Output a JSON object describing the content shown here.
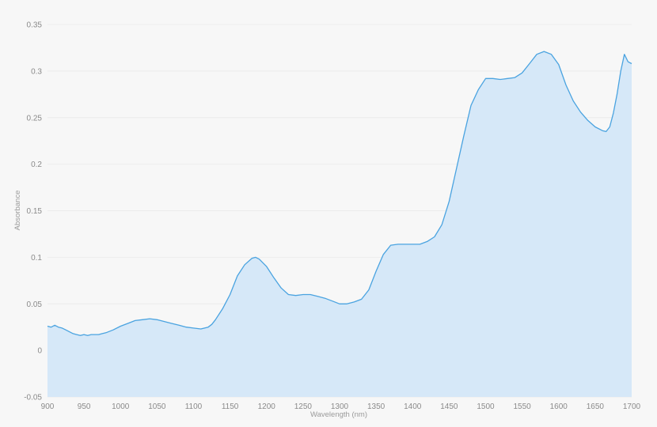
{
  "chart_data": {
    "type": "area",
    "xlabel": "Wavelength (nm)",
    "ylabel": "Absorbance",
    "xlim": [
      900,
      1700
    ],
    "ylim": [
      -0.05,
      0.35
    ],
    "grid": true,
    "x_ticks": [
      900,
      950,
      1000,
      1050,
      1100,
      1150,
      1200,
      1250,
      1300,
      1350,
      1400,
      1450,
      1500,
      1550,
      1600,
      1650,
      1700
    ],
    "y_ticks": [
      "-0.05",
      "0",
      "0.05",
      "0.1",
      "0.15",
      "0.2",
      "0.25",
      "0.3",
      "0.35"
    ],
    "colors": {
      "line": "#4aa3e0",
      "fill": "#d6e8f8",
      "grid": "#ececec"
    },
    "series": [
      {
        "x": [
          900,
          905,
          910,
          915,
          920,
          925,
          930,
          935,
          940,
          945,
          950,
          955,
          960,
          965,
          970,
          975,
          980,
          990,
          1000,
          1010,
          1020,
          1030,
          1040,
          1050,
          1060,
          1070,
          1080,
          1090,
          1100,
          1110,
          1120,
          1125,
          1130,
          1140,
          1150,
          1160,
          1170,
          1180,
          1185,
          1190,
          1200,
          1210,
          1220,
          1230,
          1240,
          1250,
          1260,
          1270,
          1280,
          1290,
          1300,
          1310,
          1320,
          1330,
          1340,
          1350,
          1360,
          1370,
          1380,
          1390,
          1400,
          1410,
          1420,
          1430,
          1440,
          1450,
          1460,
          1470,
          1480,
          1490,
          1500,
          1510,
          1520,
          1530,
          1540,
          1550,
          1560,
          1570,
          1580,
          1590,
          1600,
          1610,
          1620,
          1630,
          1640,
          1650,
          1660,
          1665,
          1670,
          1675,
          1680,
          1685,
          1690,
          1695,
          1700
        ],
        "y": [
          0.026,
          0.025,
          0.027,
          0.025,
          0.024,
          0.022,
          0.02,
          0.018,
          0.017,
          0.016,
          0.017,
          0.016,
          0.017,
          0.017,
          0.017,
          0.018,
          0.019,
          0.022,
          0.026,
          0.029,
          0.032,
          0.033,
          0.034,
          0.033,
          0.031,
          0.029,
          0.027,
          0.025,
          0.024,
          0.023,
          0.025,
          0.028,
          0.033,
          0.045,
          0.06,
          0.08,
          0.092,
          0.099,
          0.1,
          0.098,
          0.09,
          0.078,
          0.067,
          0.06,
          0.059,
          0.06,
          0.06,
          0.058,
          0.056,
          0.053,
          0.05,
          0.05,
          0.052,
          0.055,
          0.065,
          0.085,
          0.103,
          0.113,
          0.114,
          0.114,
          0.114,
          0.114,
          0.117,
          0.122,
          0.135,
          0.16,
          0.195,
          0.23,
          0.263,
          0.28,
          0.292,
          0.292,
          0.291,
          0.292,
          0.293,
          0.298,
          0.308,
          0.318,
          0.321,
          0.318,
          0.307,
          0.285,
          0.268,
          0.256,
          0.247,
          0.24,
          0.236,
          0.235,
          0.24,
          0.255,
          0.275,
          0.3,
          0.318,
          0.31,
          0.308
        ]
      }
    ]
  }
}
